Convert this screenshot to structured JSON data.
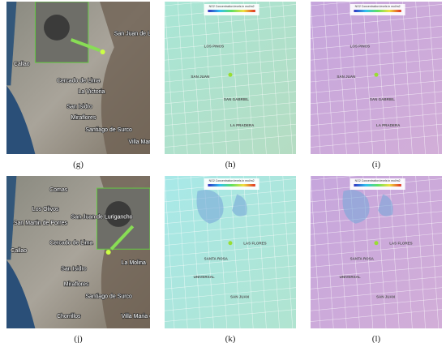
{
  "panels": [
    {
      "label": "(g)",
      "map_labels": [
        "Callao",
        "Cercado de Lima",
        "La Victoria",
        "San Isidro",
        "Miraflores",
        "Santiago de Surco",
        "Villa Maria del Triunfo",
        "San Juan de Lurigancho"
      ]
    },
    {
      "label": "(h)",
      "legend_title": "NO2 Concentration levels in mol/m2",
      "map_labels": [
        "LOS PINOS",
        "SAN GABRIEL",
        "LA PRADERA",
        "SAN JUAN"
      ]
    },
    {
      "label": "(i)",
      "legend_title": "NO2 Concentration levels in mol/m2",
      "map_labels": [
        "LOS PINOS",
        "SAN GABRIEL",
        "LA PRADERA",
        "SAN JUAN"
      ]
    },
    {
      "label": "(j)",
      "map_labels": [
        "Comas",
        "Los Olivos",
        "San Martin de Porres",
        "San Juan de Lurigancho",
        "Callao",
        "Cercado de Lima",
        "San Isidro",
        "Miraflores",
        "Santiago de Surco",
        "La Molina",
        "Chorrillos",
        "Villa Maria del Triunfo"
      ]
    },
    {
      "label": "(k)",
      "legend_title": "NO2 Concentration levels in mol/m2",
      "map_labels": [
        "SANTA ROSA",
        "UNIVERSAL",
        "SAN JUAN",
        "LAS FLORES"
      ]
    },
    {
      "label": "(l)",
      "legend_title": "NO2 Concentration levels in mol/m2",
      "map_labels": [
        "SANTA ROSA",
        "UNIVERSAL",
        "SAN JUAN",
        "LAS FLORES"
      ]
    }
  ]
}
